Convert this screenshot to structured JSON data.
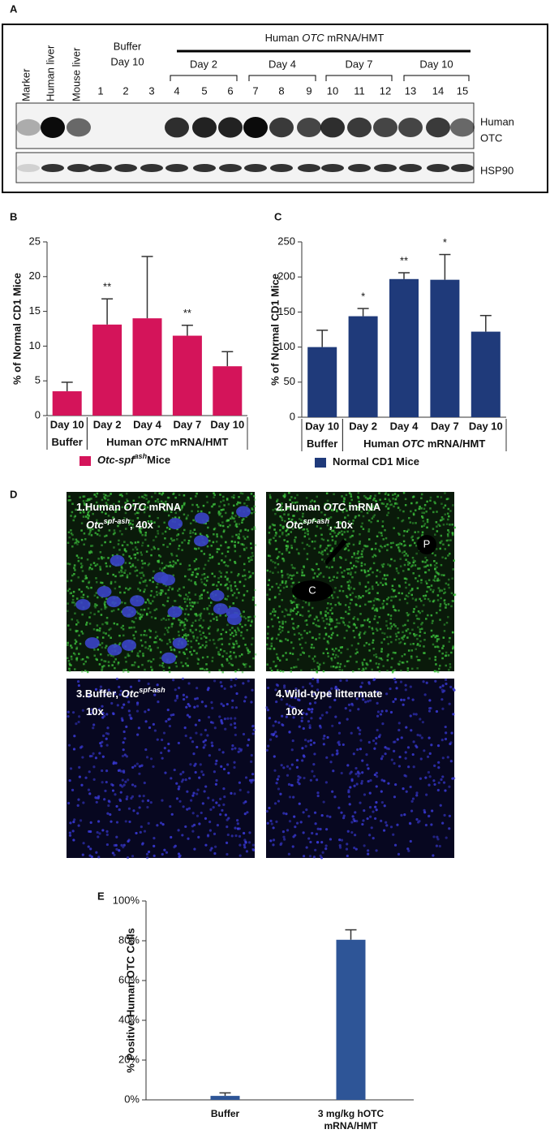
{
  "figure": {
    "panel_labels": [
      "A",
      "B",
      "C",
      "D",
      "E"
    ]
  },
  "blot": {
    "lane_labels": [
      "Marker",
      "Human liver",
      "Mouse liver"
    ],
    "buffer_label": [
      "Buffer",
      "Day 10"
    ],
    "treatment_label": [
      {
        "text": "Human "
      },
      {
        "text": "OTC",
        "style": "italic"
      },
      {
        "text": " mRNA/HMT"
      }
    ],
    "day_groups": [
      "Day 2",
      "Day 4",
      "Day 7",
      "Day 10"
    ],
    "lanes": [
      "1",
      "2",
      "3",
      "4",
      "5",
      "6",
      "7",
      "8",
      "9",
      "10",
      "11",
      "12",
      "13",
      "14",
      "15"
    ],
    "otc_label": [
      "Human",
      "OTC"
    ],
    "hsp90_label": "HSP90"
  },
  "chart_data": [
    {
      "type": "bar",
      "categories": [
        "Day 10",
        "Day 2",
        "Day 4",
        "Day 7",
        "Day 10"
      ],
      "groups": [
        {
          "span": [
            0,
            0
          ],
          "label": [
            {
              "text": "Buffer"
            }
          ]
        },
        {
          "span": [
            1,
            4
          ],
          "label": [
            {
              "text": "Human "
            },
            {
              "text": "OTC",
              "style": "italic"
            },
            {
              "text": " mRNA/HMT"
            }
          ]
        }
      ],
      "ylabel": "% of Normal CD1 Mice",
      "ylim": [
        0,
        25
      ],
      "yticks": [
        0,
        5,
        10,
        15,
        20,
        25
      ],
      "series": [
        {
          "name": [
            {
              "text": "Otc-spf",
              "style": "italic"
            },
            {
              "text": "ash",
              "style": "sup"
            },
            {
              "text": "Mice"
            }
          ],
          "color": "#d4145a",
          "values": [
            3.5,
            13.1,
            14.0,
            11.5,
            7.1
          ],
          "errors": [
            1.3,
            3.7,
            8.9,
            1.5,
            2.1
          ]
        }
      ],
      "annotations": [
        {
          "index": 1,
          "text": "**"
        },
        {
          "index": 3,
          "text": "**"
        }
      ]
    },
    {
      "type": "bar",
      "categories": [
        "Day 10",
        "Day 2",
        "Day 4",
        "Day 7",
        "Day 10"
      ],
      "groups": [
        {
          "span": [
            0,
            0
          ],
          "label": [
            {
              "text": "Buffer"
            }
          ]
        },
        {
          "span": [
            1,
            4
          ],
          "label": [
            {
              "text": "Human "
            },
            {
              "text": "OTC",
              "style": "italic"
            },
            {
              "text": " mRNA/HMT"
            }
          ]
        }
      ],
      "ylabel": "% of Normal CD1 Mice",
      "ylim": [
        0,
        250
      ],
      "yticks": [
        0,
        50,
        100,
        150,
        200,
        250
      ],
      "series": [
        {
          "name": [
            {
              "text": "Normal CD1 Mice"
            }
          ],
          "color": "#1f3a7a",
          "values": [
            100,
            144,
            197,
            196,
            122
          ],
          "errors": [
            24,
            11,
            9,
            36,
            23
          ]
        }
      ],
      "annotations": [
        {
          "index": 1,
          "text": "*"
        },
        {
          "index": 2,
          "text": "**"
        },
        {
          "index": 3,
          "text": "*"
        }
      ]
    },
    {
      "type": "bar",
      "categories": [
        "Buffer",
        "3 mg/kg hOTC mRNA/HMT"
      ],
      "ylabel": "% Positive Human OTC Cells",
      "ylim": [
        0,
        100
      ],
      "yticks": [
        {
          "value": 0,
          "label": "0%"
        },
        {
          "value": 20,
          "label": "20%"
        },
        {
          "value": 40,
          "label": "40%"
        },
        {
          "value": 60,
          "label": "60%"
        },
        {
          "value": 80,
          "label": "80%"
        },
        {
          "value": 100,
          "label": "100%"
        }
      ],
      "series": [
        {
          "color": "#2e5597",
          "values": [
            2,
            80.5
          ],
          "errors": [
            1.5,
            5
          ]
        }
      ]
    }
  ],
  "micrographs": [
    {
      "lines": [
        [
          {
            "text": "1.Human "
          },
          {
            "text": "OTC",
            "style": "italic"
          },
          {
            "text": " mRNA"
          }
        ],
        [
          {
            "text": "Otc",
            "style": "italic"
          },
          {
            "text": "spf-ash",
            "style": "sup"
          },
          {
            "text": ", 40x"
          }
        ]
      ]
    },
    {
      "lines": [
        [
          {
            "text": "2.Human "
          },
          {
            "text": "OTC",
            "style": "italic"
          },
          {
            "text": " mRNA"
          }
        ],
        [
          {
            "text": "Otc",
            "style": "italic"
          },
          {
            "text": "spf-ash",
            "style": "sup"
          },
          {
            "text": ", 10x"
          }
        ]
      ],
      "markers": [
        "C",
        "P"
      ]
    },
    {
      "lines": [
        [
          {
            "text": "3.Buffer, "
          },
          {
            "text": "Otc",
            "style": "italic"
          },
          {
            "text": "spf-ash",
            "style": "sup"
          }
        ],
        [
          {
            "text": "10x"
          }
        ]
      ]
    },
    {
      "lines": [
        [
          {
            "text": "4.Wild-type littermate"
          }
        ],
        [
          {
            "text": "10x"
          }
        ]
      ]
    }
  ]
}
